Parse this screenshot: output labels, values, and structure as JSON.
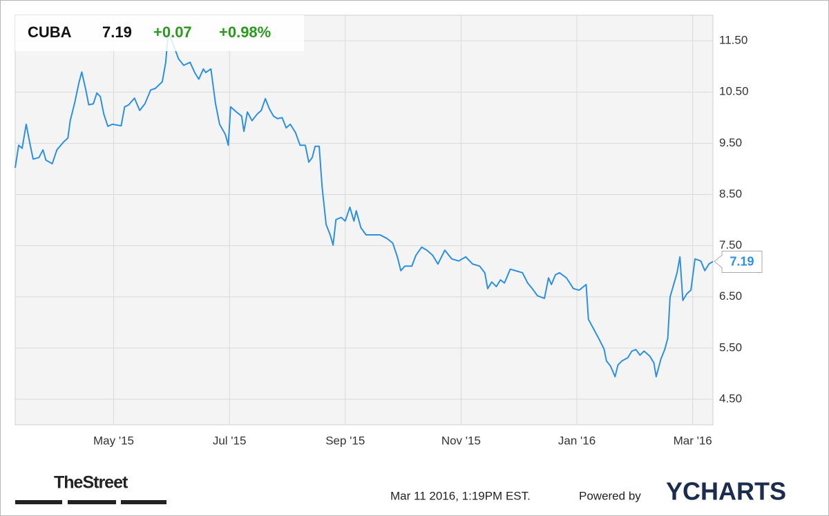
{
  "chart_data": {
    "type": "line",
    "quote": {
      "symbol": "CUBA",
      "price": "7.19",
      "change": "+0.07",
      "change_percent": "+0.98%"
    },
    "x": [
      0.3,
      0.36,
      0.42,
      0.49,
      0.56,
      0.61,
      0.71,
      0.78,
      0.83,
      0.94,
      1.02,
      1.14,
      1.21,
      1.25,
      1.33,
      1.4,
      1.45,
      1.52,
      1.57,
      1.65,
      1.71,
      1.77,
      1.83,
      1.9,
      1.98,
      2.13,
      2.19,
      2.26,
      2.36,
      2.45,
      2.54,
      2.64,
      2.72,
      2.84,
      2.9,
      2.94,
      3.02,
      3.12,
      3.21,
      3.32,
      3.4,
      3.47,
      3.55,
      3.59,
      3.68,
      3.76,
      3.83,
      3.93,
      3.98,
      4.02,
      4.12,
      4.21,
      4.25,
      4.31,
      4.39,
      4.48,
      4.55,
      4.62,
      4.69,
      4.76,
      4.83,
      4.91,
      4.98,
      5.05,
      5.14,
      5.22,
      5.31,
      5.37,
      5.43,
      5.48,
      5.55,
      5.6,
      5.67,
      5.74,
      5.79,
      5.84,
      5.93,
      6.0,
      6.08,
      6.15,
      6.19,
      6.27,
      6.36,
      6.48,
      6.6,
      6.72,
      6.82,
      6.9,
      6.96,
      7.03,
      7.15,
      7.22,
      7.32,
      7.41,
      7.51,
      7.6,
      7.72,
      7.84,
      7.96,
      8.08,
      8.2,
      8.32,
      8.41,
      8.46,
      8.53,
      8.61,
      8.68,
      8.75,
      8.85,
      8.94,
      9.06,
      9.15,
      9.23,
      9.32,
      9.44,
      9.51,
      9.56,
      9.63,
      9.7,
      9.82,
      9.94,
      10.04,
      10.16,
      10.2,
      10.3,
      10.39,
      10.47,
      10.51,
      10.58,
      10.66,
      10.71,
      10.78,
      10.88,
      10.95,
      11.02,
      11.09,
      11.16,
      11.26,
      11.33,
      11.37,
      11.45,
      11.52,
      11.57,
      11.61,
      11.68,
      11.73,
      11.78,
      11.83,
      11.9,
      11.97,
      12.04,
      12.14,
      12.21,
      12.28,
      12.35
    ],
    "values": [
      9.02,
      9.46,
      9.4,
      9.87,
      9.46,
      9.19,
      9.22,
      9.37,
      9.17,
      9.1,
      9.37,
      9.53,
      9.6,
      9.94,
      10.3,
      10.68,
      10.89,
      10.54,
      10.25,
      10.27,
      10.48,
      10.41,
      10.07,
      9.83,
      9.87,
      9.84,
      10.21,
      10.25,
      10.38,
      10.14,
      10.27,
      10.54,
      10.57,
      10.7,
      11.08,
      11.65,
      11.46,
      11.15,
      11.02,
      11.08,
      10.88,
      10.75,
      10.95,
      10.88,
      10.95,
      10.27,
      9.87,
      9.67,
      9.46,
      10.21,
      10.11,
      10.03,
      9.73,
      10.11,
      9.94,
      10.07,
      10.14,
      10.37,
      10.17,
      10.03,
      9.98,
      10.0,
      9.8,
      9.87,
      9.71,
      9.46,
      9.46,
      9.13,
      9.22,
      9.44,
      9.44,
      8.65,
      7.91,
      7.71,
      7.51,
      8.01,
      8.05,
      7.98,
      8.25,
      7.98,
      8.18,
      7.85,
      7.71,
      7.71,
      7.71,
      7.64,
      7.55,
      7.28,
      7.01,
      7.1,
      7.1,
      7.31,
      7.47,
      7.41,
      7.31,
      7.14,
      7.41,
      7.24,
      7.2,
      7.28,
      7.14,
      7.1,
      6.97,
      6.66,
      6.79,
      6.7,
      6.83,
      6.77,
      7.04,
      7.01,
      6.97,
      6.77,
      6.66,
      6.52,
      6.47,
      6.87,
      6.74,
      6.93,
      6.97,
      6.87,
      6.66,
      6.63,
      6.74,
      6.06,
      5.85,
      5.66,
      5.48,
      5.25,
      5.15,
      4.94,
      5.17,
      5.25,
      5.31,
      5.44,
      5.47,
      5.36,
      5.44,
      5.34,
      5.21,
      4.94,
      5.28,
      5.48,
      5.69,
      6.5,
      6.77,
      6.97,
      7.28,
      6.43,
      6.56,
      6.63,
      7.24,
      7.2,
      7.01,
      7.14,
      7.19
    ],
    "color": "#2b8fe3",
    "xlim": [
      0.3,
      12.35
    ],
    "xticks": [
      {
        "value": 2,
        "label": "May '15"
      },
      {
        "value": 4,
        "label": "Jul '15"
      },
      {
        "value": 6,
        "label": "Sep '15"
      },
      {
        "value": 8,
        "label": "Nov '15"
      },
      {
        "value": 10,
        "label": "Jan '16"
      },
      {
        "value": 12,
        "label": "Mar '16"
      }
    ],
    "ylim": [
      4,
      12
    ],
    "yticks": [
      {
        "value": 4.5,
        "label": "4.50"
      },
      {
        "value": 5.5,
        "label": "5.50"
      },
      {
        "value": 6.5,
        "label": "6.50"
      },
      {
        "value": 7.5,
        "label": "7.50"
      },
      {
        "value": 8.5,
        "label": "8.50"
      },
      {
        "value": 9.5,
        "label": "9.50"
      },
      {
        "value": 10.5,
        "label": "10.50"
      },
      {
        "value": 11.5,
        "label": "11.50"
      }
    ],
    "grid": true,
    "source_logo": "TheStreet",
    "timestamp": "Mar 11 2016, 1:19PM EST.",
    "powered_by": "Powered by",
    "brand": "YCHARTS"
  }
}
